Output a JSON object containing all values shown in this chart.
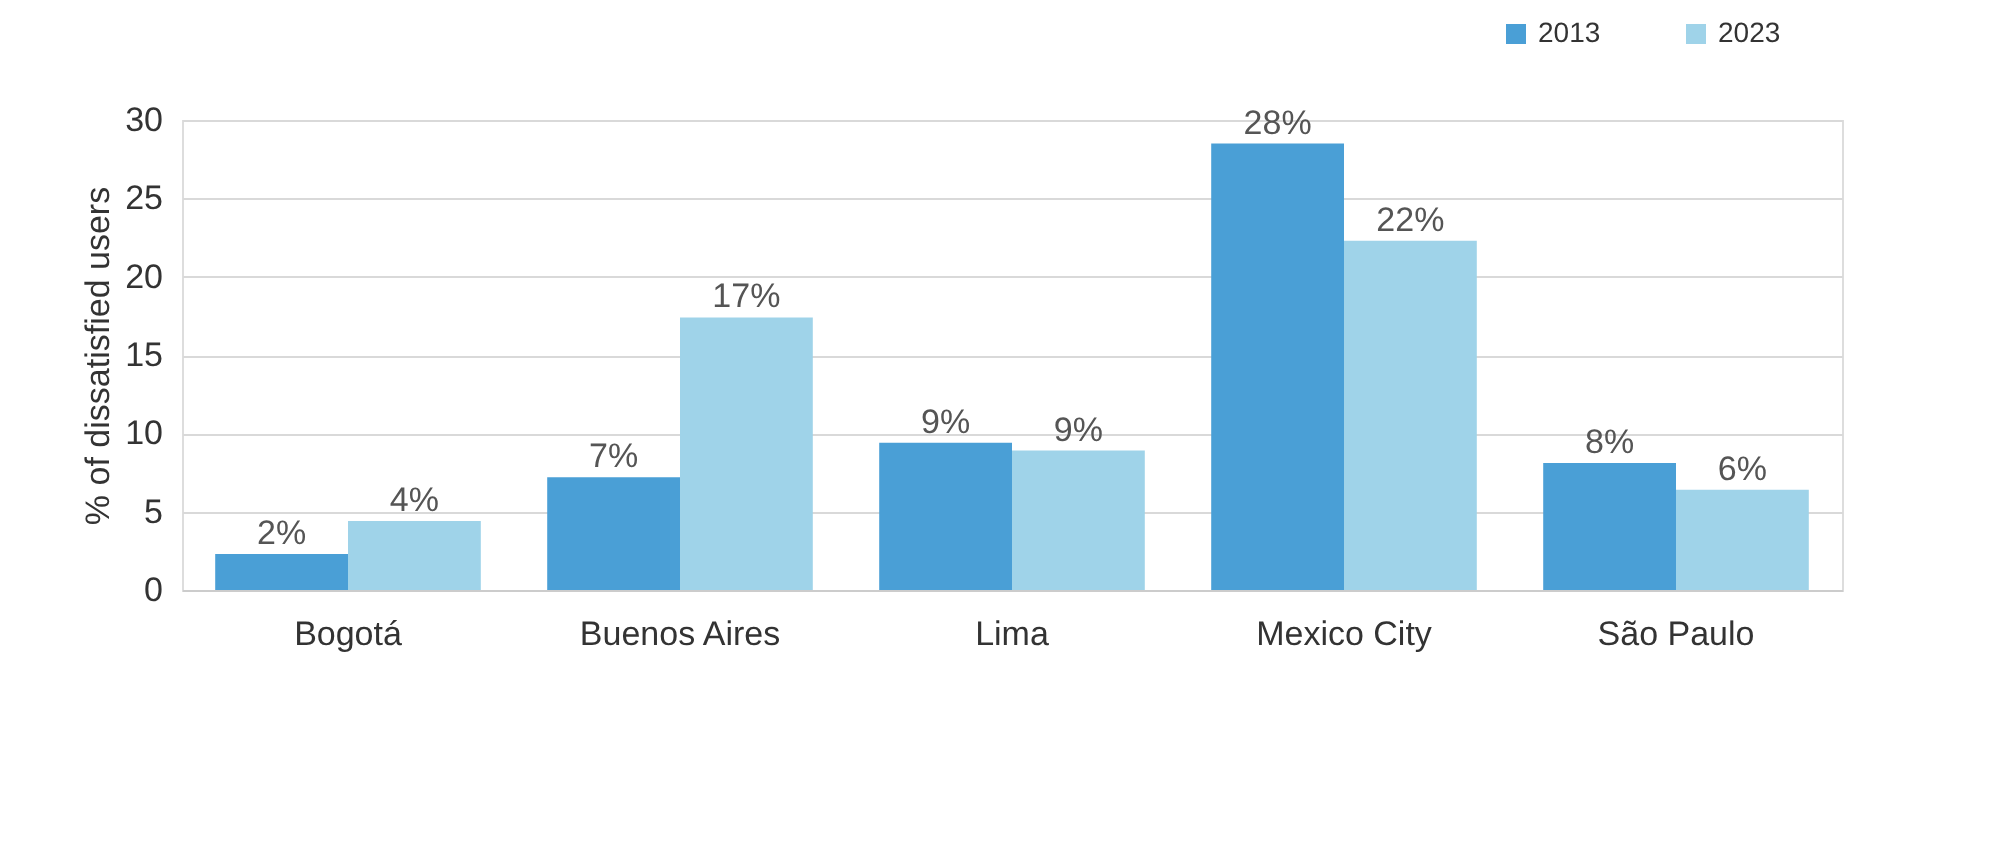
{
  "chart_data": {
    "type": "bar",
    "ylabel": "% of dissatisfied users",
    "categories": [
      "Bogotá",
      "Buenos Aires",
      "Lima",
      "Mexico City",
      "São Paulo"
    ],
    "series": [
      {
        "name": "2013",
        "color": "#4a9fd6",
        "values": [
          2.3,
          7.2,
          9.4,
          28.5,
          8.1
        ],
        "value_labels": [
          "2%",
          "7%",
          "9%",
          "28%",
          "8%"
        ]
      },
      {
        "name": "2023",
        "color": "#9fd3e9",
        "values": [
          4.4,
          17.4,
          8.9,
          22.3,
          6.4
        ],
        "value_labels": [
          "4%",
          "17%",
          "9%",
          "22%",
          "6%"
        ]
      }
    ],
    "ylim": [
      0,
      30
    ],
    "yticks": [
      0,
      5,
      10,
      15,
      20,
      25,
      30
    ],
    "grid": "y",
    "legend": "top right"
  }
}
